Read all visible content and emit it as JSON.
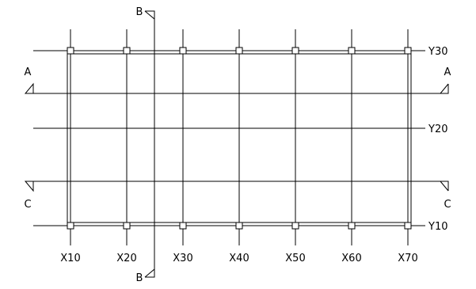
{
  "grid": {
    "x_axes": [
      "X10",
      "X20",
      "X30",
      "X40",
      "X50",
      "X60",
      "X70"
    ],
    "y_axes": [
      "Y30",
      "Y20",
      "Y10"
    ]
  },
  "sections": {
    "a_left": "A",
    "a_right": "A",
    "c_left": "C",
    "c_right": "C",
    "b_top": "B",
    "b_bottom": "B"
  },
  "colors": {
    "line": "#000000",
    "background": "#ffffff"
  }
}
